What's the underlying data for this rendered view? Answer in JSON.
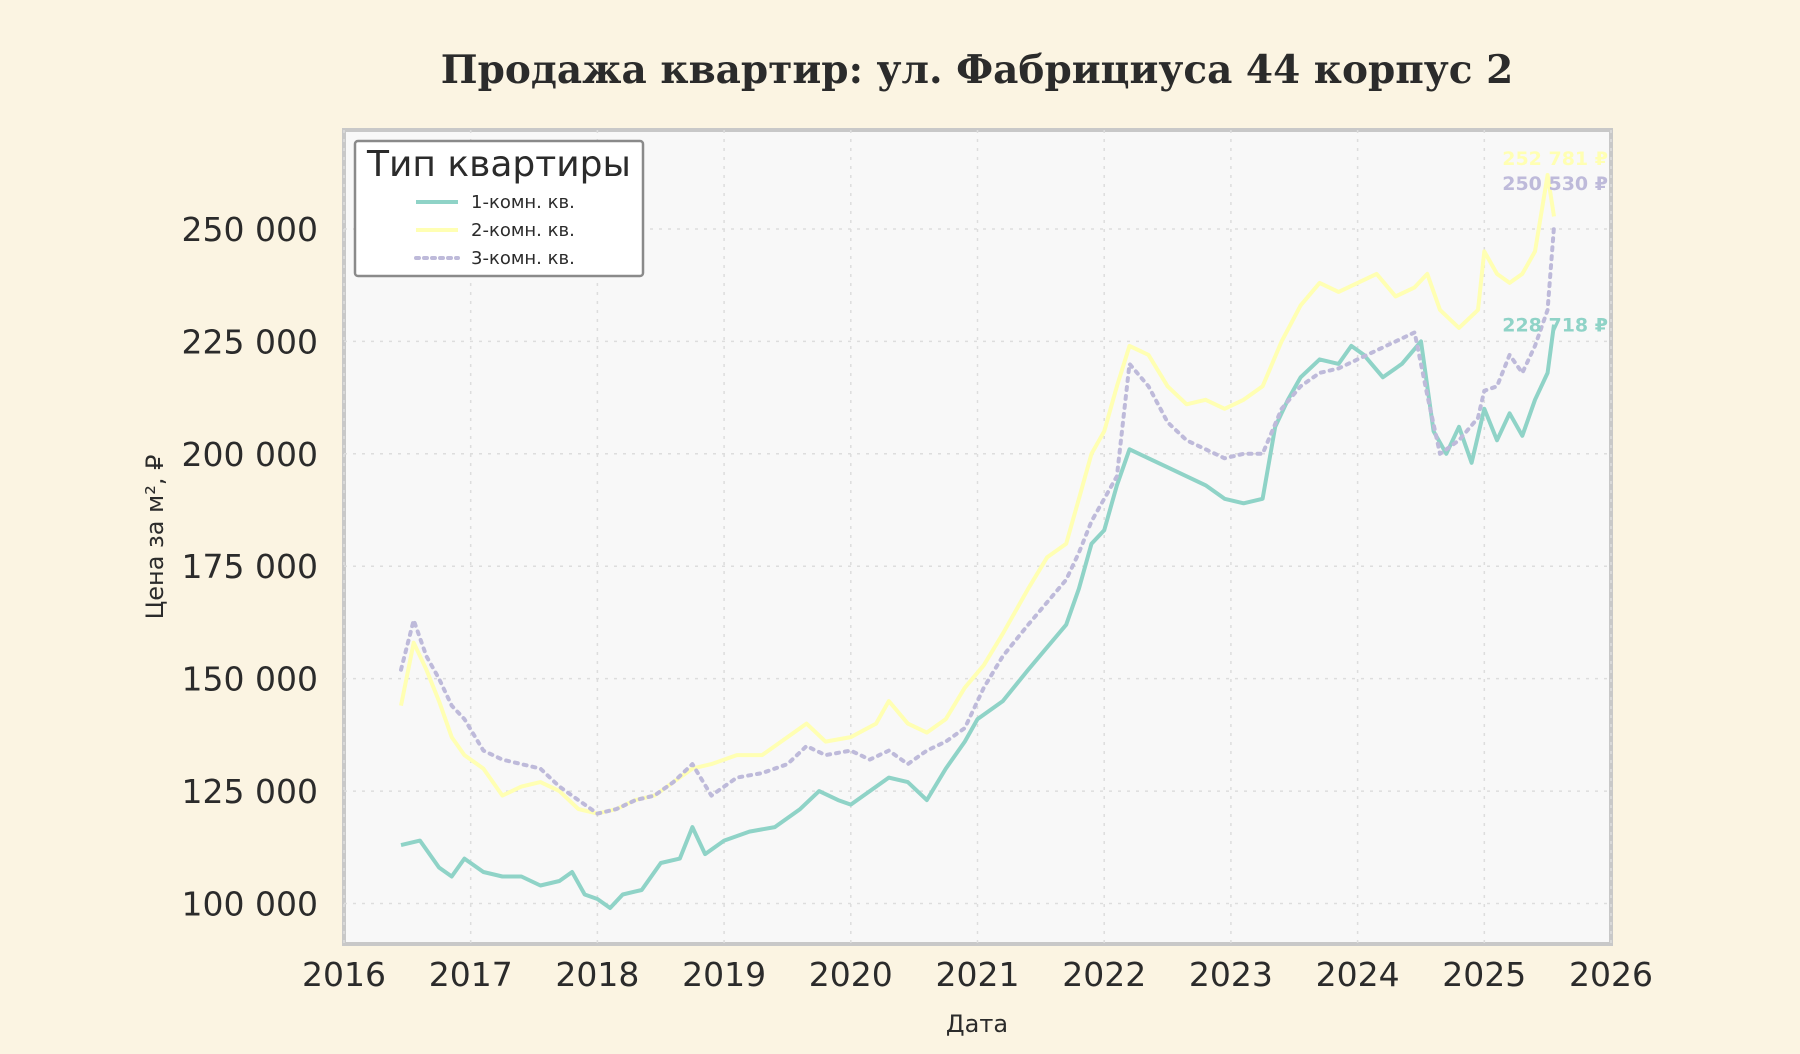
{
  "chart_data": {
    "type": "line",
    "title": "Продажа квартир: ул. Фабрициуса 44 корпус 2",
    "xlabel": "Дата",
    "ylabel": "Цена за м², ₽",
    "xlim": [
      2016,
      2026
    ],
    "ylim": [
      91000,
      272000
    ],
    "x_ticks": [
      "2016",
      "2017",
      "2018",
      "2019",
      "2020",
      "2021",
      "2022",
      "2023",
      "2024",
      "2025",
      "2026"
    ],
    "y_ticks": [
      "100 000",
      "125 000",
      "150 000",
      "175 000",
      "200 000",
      "225 000",
      "250 000"
    ],
    "y_tick_values": [
      100000,
      125000,
      150000,
      175000,
      200000,
      225000,
      250000
    ],
    "grid": true,
    "legend": {
      "title": "Тип квартиры",
      "position": "top-left"
    },
    "series": [
      {
        "name": "1-комн. кв.",
        "color": "#8fd3c7",
        "style": "solid",
        "end_label": "228 718 ₽",
        "x": [
          2016.45,
          2016.6,
          2016.75,
          2016.85,
          2016.95,
          2017.1,
          2017.25,
          2017.4,
          2017.55,
          2017.7,
          2017.8,
          2017.9,
          2018.0,
          2018.1,
          2018.2,
          2018.35,
          2018.5,
          2018.65,
          2018.75,
          2018.85,
          2019.0,
          2019.2,
          2019.4,
          2019.6,
          2019.75,
          2019.9,
          2020.0,
          2020.15,
          2020.3,
          2020.45,
          2020.6,
          2020.75,
          2020.9,
          2021.0,
          2021.2,
          2021.4,
          2021.55,
          2021.7,
          2021.8,
          2021.9,
          2022.0,
          2022.1,
          2022.2,
          2022.35,
          2022.5,
          2022.65,
          2022.8,
          2022.95,
          2023.1,
          2023.25,
          2023.35,
          2023.45,
          2023.55,
          2023.7,
          2023.85,
          2023.95,
          2024.05,
          2024.2,
          2024.35,
          2024.5,
          2024.6,
          2024.7,
          2024.8,
          2024.9,
          2025.0,
          2025.1,
          2025.2,
          2025.3,
          2025.4,
          2025.5,
          2025.55
        ],
        "y": [
          113000,
          114000,
          108000,
          106000,
          110000,
          107000,
          106000,
          106000,
          104000,
          105000,
          107000,
          102000,
          101000,
          99000,
          102000,
          103000,
          109000,
          110000,
          117000,
          111000,
          114000,
          116000,
          117000,
          121000,
          125000,
          123000,
          122000,
          125000,
          128000,
          127000,
          123000,
          130000,
          136000,
          141000,
          145000,
          152000,
          157000,
          162000,
          170000,
          180000,
          183000,
          193000,
          201000,
          199000,
          197000,
          195000,
          193000,
          190000,
          189000,
          190000,
          206000,
          212000,
          217000,
          221000,
          220000,
          224000,
          222000,
          217000,
          220000,
          225000,
          205000,
          200000,
          206000,
          198000,
          210000,
          203000,
          209000,
          204000,
          212000,
          218000,
          228718
        ]
      },
      {
        "name": "2-комн. кв.",
        "color": "#ffffb3",
        "style": "solid",
        "end_label": "252 781 ₽",
        "x": [
          2016.45,
          2016.55,
          2016.65,
          2016.75,
          2016.85,
          2016.95,
          2017.1,
          2017.25,
          2017.4,
          2017.55,
          2017.7,
          2017.85,
          2018.0,
          2018.15,
          2018.3,
          2018.45,
          2018.6,
          2018.75,
          2018.9,
          2019.1,
          2019.3,
          2019.5,
          2019.65,
          2019.8,
          2020.0,
          2020.2,
          2020.3,
          2020.45,
          2020.6,
          2020.75,
          2020.9,
          2021.05,
          2021.2,
          2021.4,
          2021.55,
          2021.7,
          2021.8,
          2021.9,
          2022.0,
          2022.1,
          2022.2,
          2022.35,
          2022.5,
          2022.65,
          2022.8,
          2022.95,
          2023.1,
          2023.25,
          2023.4,
          2023.55,
          2023.7,
          2023.85,
          2024.0,
          2024.15,
          2024.3,
          2024.45,
          2024.55,
          2024.65,
          2024.8,
          2024.95,
          2025.0,
          2025.1,
          2025.2,
          2025.3,
          2025.4,
          2025.5,
          2025.55
        ],
        "y": [
          144000,
          158000,
          152000,
          145000,
          137000,
          133000,
          130000,
          124000,
          126000,
          127000,
          125000,
          121000,
          120000,
          121000,
          123000,
          124000,
          127000,
          130000,
          131000,
          133000,
          133000,
          137000,
          140000,
          136000,
          137000,
          140000,
          145000,
          140000,
          138000,
          141000,
          148000,
          153000,
          160000,
          170000,
          177000,
          180000,
          190000,
          200000,
          205000,
          215000,
          224000,
          222000,
          215000,
          211000,
          212000,
          210000,
          212000,
          215000,
          225000,
          233000,
          238000,
          236000,
          238000,
          240000,
          235000,
          237000,
          240000,
          232000,
          228000,
          232000,
          245000,
          240000,
          238000,
          240000,
          245000,
          262000,
          252781
        ]
      },
      {
        "name": "3-комн. кв.",
        "color": "#bebada",
        "style": "dotted",
        "end_label": "250 530 ₽",
        "x": [
          2016.45,
          2016.55,
          2016.65,
          2016.75,
          2016.85,
          2016.95,
          2017.1,
          2017.25,
          2017.4,
          2017.55,
          2017.7,
          2017.85,
          2018.0,
          2018.15,
          2018.3,
          2018.45,
          2018.6,
          2018.75,
          2018.9,
          2019.1,
          2019.3,
          2019.5,
          2019.65,
          2019.8,
          2020.0,
          2020.15,
          2020.3,
          2020.45,
          2020.6,
          2020.75,
          2020.9,
          2021.05,
          2021.2,
          2021.4,
          2021.55,
          2021.7,
          2021.8,
          2021.9,
          2022.0,
          2022.1,
          2022.2,
          2022.35,
          2022.5,
          2022.65,
          2022.8,
          2022.95,
          2023.1,
          2023.25,
          2023.4,
          2023.55,
          2023.7,
          2023.85,
          2024.0,
          2024.15,
          2024.3,
          2024.45,
          2024.55,
          2024.65,
          2024.8,
          2024.95,
          2025.0,
          2025.1,
          2025.2,
          2025.3,
          2025.4,
          2025.5,
          2025.55
        ],
        "y": [
          152000,
          163000,
          155000,
          150000,
          144000,
          141000,
          134000,
          132000,
          131000,
          130000,
          126000,
          123000,
          120000,
          121000,
          123000,
          124000,
          127000,
          131000,
          124000,
          128000,
          129000,
          131000,
          135000,
          133000,
          134000,
          132000,
          134000,
          131000,
          134000,
          136000,
          139000,
          148000,
          155000,
          162000,
          167000,
          172000,
          178000,
          185000,
          190000,
          195000,
          220000,
          215000,
          207000,
          203000,
          201000,
          199000,
          200000,
          200000,
          210000,
          215000,
          218000,
          219000,
          221000,
          223000,
          225000,
          227000,
          213000,
          200000,
          203000,
          208000,
          214000,
          215000,
          222000,
          218000,
          224000,
          232000,
          250530
        ]
      }
    ]
  }
}
